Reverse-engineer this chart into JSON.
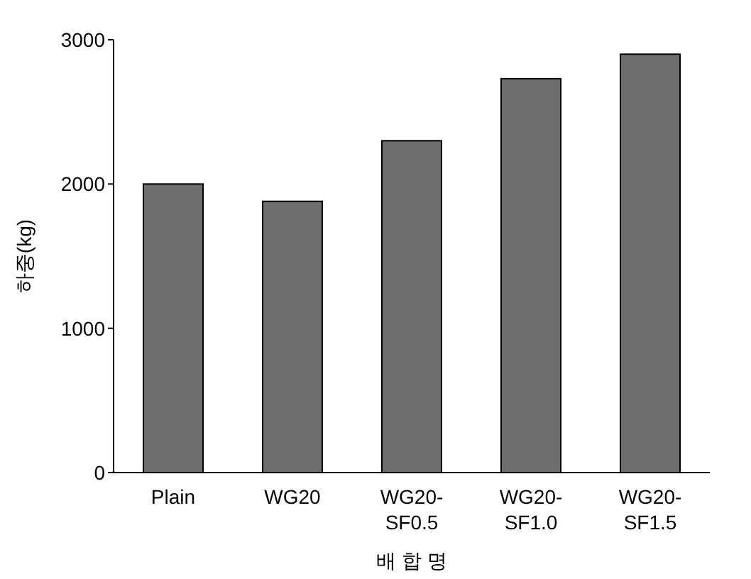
{
  "chart_data": {
    "type": "bar",
    "categories": [
      "Plain",
      "WG20",
      "WG20-SF0.5",
      "WG20-SF1.0",
      "WG20-SF1.5"
    ],
    "values": [
      2000,
      1880,
      2300,
      2730,
      2900
    ],
    "color": "#6e6e6e",
    "ylabel": "하중(kg)",
    "xlabel": "배 합 명",
    "ylim": [
      0,
      3000
    ],
    "yticks": [
      0,
      1000,
      2000,
      3000
    ],
    "grid": false
  }
}
